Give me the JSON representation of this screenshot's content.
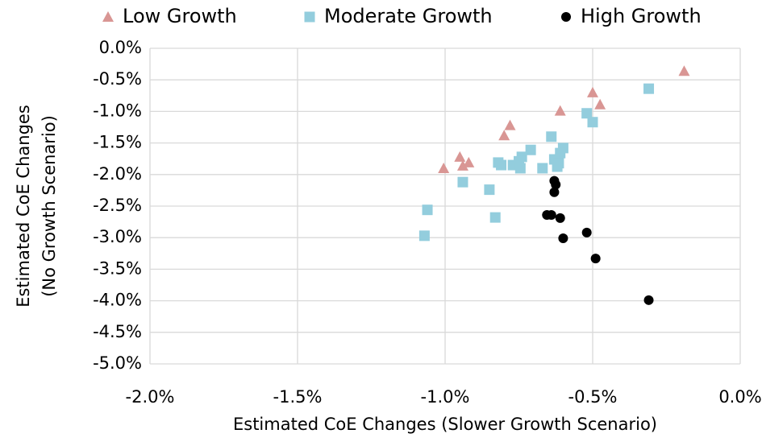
{
  "chart_data": {
    "type": "scatter",
    "xlabel": "Estimated CoE Changes (Slower Growth Scenario)",
    "ylabel": [
      "Estimated CoE Changes",
      "(No Growth Scenario)"
    ],
    "xlim": [
      -2.0,
      0.0
    ],
    "xticks": [
      {
        "value": -2.0,
        "label": "-2.0%"
      },
      {
        "value": -1.5,
        "label": "-1.5%"
      },
      {
        "value": -1.0,
        "label": "-1.0%"
      },
      {
        "value": -0.5,
        "label": "-0.5%"
      },
      {
        "value": 0.0,
        "label": "0.0%"
      }
    ],
    "ylim": [
      -5.0,
      0.0
    ],
    "yticks": [
      {
        "value": 0.0,
        "label": "0.0%"
      },
      {
        "value": -0.5,
        "label": "-0.5%"
      },
      {
        "value": -1.0,
        "label": "-1.0%"
      },
      {
        "value": -1.5,
        "label": "-1.5%"
      },
      {
        "value": -2.0,
        "label": "-2.0%"
      },
      {
        "value": -2.5,
        "label": "-2.5%"
      },
      {
        "value": -3.0,
        "label": "-3.0%"
      },
      {
        "value": -3.5,
        "label": "-3.5%"
      },
      {
        "value": -4.0,
        "label": "-4.0%"
      },
      {
        "value": -4.5,
        "label": "-4.5%"
      },
      {
        "value": -5.0,
        "label": "-5.0%"
      }
    ],
    "grid": true,
    "legend": "top",
    "series": [
      {
        "name": "Low Growth",
        "color": "#d99694",
        "marker": "triangle",
        "x": [
          -0.19,
          -0.5,
          -0.475,
          -0.61,
          -0.78,
          -0.8,
          -0.95,
          -0.94,
          -0.92,
          -1.005
        ],
        "values": [
          -0.36,
          -0.7,
          -0.89,
          -0.99,
          -1.22,
          -1.38,
          -1.72,
          -1.86,
          -1.81,
          -1.9
        ]
      },
      {
        "name": "Moderate Growth",
        "color": "#93cddd",
        "marker": "square",
        "x": [
          -0.31,
          -0.52,
          -0.5,
          -0.64,
          -0.6,
          -0.61,
          -0.63,
          -0.615,
          -0.62,
          -0.71,
          -0.74,
          -0.75,
          -0.77,
          -0.82,
          -0.81,
          -0.745,
          -0.67,
          -0.94,
          -0.85,
          -1.06,
          -0.83,
          -1.07
        ],
        "values": [
          -0.64,
          -1.03,
          -1.17,
          -1.4,
          -1.58,
          -1.66,
          -1.76,
          -1.82,
          -1.875,
          -1.61,
          -1.72,
          -1.79,
          -1.85,
          -1.81,
          -1.85,
          -1.9,
          -1.9,
          -2.12,
          -2.24,
          -2.56,
          -2.68,
          -2.97
        ]
      },
      {
        "name": "High Growth",
        "color": "#000000",
        "marker": "circle",
        "x": [
          -0.63,
          -0.625,
          -0.63,
          -0.655,
          -0.64,
          -0.61,
          -0.6,
          -0.52,
          -0.49,
          -0.31
        ],
        "values": [
          -2.1,
          -2.16,
          -2.28,
          -2.64,
          -2.64,
          -2.69,
          -3.01,
          -2.92,
          -3.33,
          -3.99
        ]
      }
    ]
  }
}
